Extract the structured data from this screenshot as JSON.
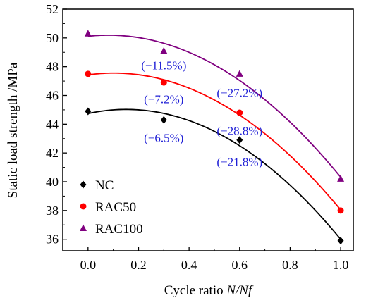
{
  "chart_data": {
    "type": "scatter",
    "xlabel_prefix": "Cycle ratio ",
    "xlabel_italic": "N/Nf",
    "ylabel": "Static load strength /MPa",
    "xlim": [
      -0.1,
      1.05
    ],
    "ylim": [
      35.2,
      52
    ],
    "xticks": [
      "0.0",
      "0.2",
      "0.4",
      "0.6",
      "0.8",
      "1.0"
    ],
    "yticks": [
      "36",
      "38",
      "40",
      "42",
      "44",
      "46",
      "48",
      "50",
      "52"
    ],
    "series": [
      {
        "name": "NC",
        "marker": "diamond",
        "color": "#000000",
        "x": [
          0,
          0.3,
          0.6,
          1.0
        ],
        "y": [
          44.9,
          44.3,
          42.9,
          35.9
        ]
      },
      {
        "name": "RAC50",
        "marker": "circle",
        "color": "#ff0000",
        "x": [
          0,
          0.3,
          0.6,
          1.0
        ],
        "y": [
          47.5,
          46.9,
          44.8,
          38.0
        ]
      },
      {
        "name": "RAC100",
        "marker": "triangle",
        "color": "#800080",
        "x": [
          0,
          0.3,
          0.6,
          1.0
        ],
        "y": [
          50.3,
          49.1,
          47.5,
          40.2
        ]
      }
    ],
    "annotations": [
      {
        "text": "(−11.5%)",
        "x": 0.3,
        "y": 48.1
      },
      {
        "text": "(−7.2%)",
        "x": 0.3,
        "y": 45.75
      },
      {
        "text": "(−6.5%)",
        "x": 0.3,
        "y": 43.05
      },
      {
        "text": "(−27.2%)",
        "x": 0.6,
        "y": 46.2
      },
      {
        "text": "(−28.8%)",
        "x": 0.6,
        "y": 43.55
      },
      {
        "text": "(−21.8%)",
        "x": 0.6,
        "y": 41.4
      }
    ],
    "legend_position": "bottom-left"
  }
}
